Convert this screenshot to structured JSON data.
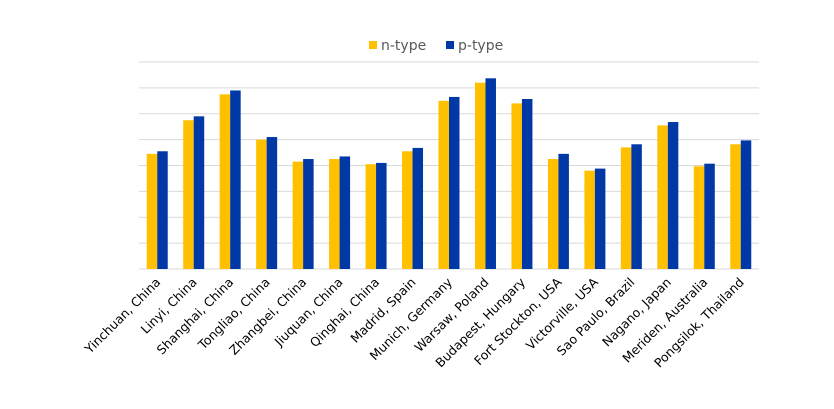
{
  "chart_data": {
    "type": "bar",
    "title": "",
    "xlabel": "",
    "ylabel": "",
    "categories": [
      "Yinchuan, China",
      "Linyi, China",
      "Shanghai, China",
      "Tongliao, China",
      "Zhangbei, China",
      "Jiuquan, China",
      "Qinghai, China",
      "Madrid, Spain",
      "Munich, Germany",
      "Warsaw, Poland",
      "Budapest, Hungary",
      "Fort Stockton, USA",
      "Victorville, USA",
      "Sao Paulo, Brazil",
      "Nagano, Japan",
      "Meriden, Australia",
      "Pongsilok, Thailand"
    ],
    "series": [
      {
        "name": "n-type",
        "color": "#FFC000",
        "values": [
          4.45,
          5.75,
          6.75,
          5.0,
          4.15,
          4.25,
          4.05,
          4.55,
          6.5,
          7.2,
          6.4,
          4.25,
          3.8,
          4.7,
          5.55,
          3.97,
          4.82
        ]
      },
      {
        "name": "p-type",
        "color": "#0039A6",
        "values": [
          4.55,
          5.9,
          6.9,
          5.1,
          4.25,
          4.35,
          4.1,
          4.68,
          6.65,
          7.37,
          6.57,
          4.45,
          3.88,
          4.82,
          5.68,
          4.07,
          4.97
        ]
      }
    ],
    "ylim": [
      0,
      8
    ],
    "grid": true,
    "legend": "top-center"
  }
}
